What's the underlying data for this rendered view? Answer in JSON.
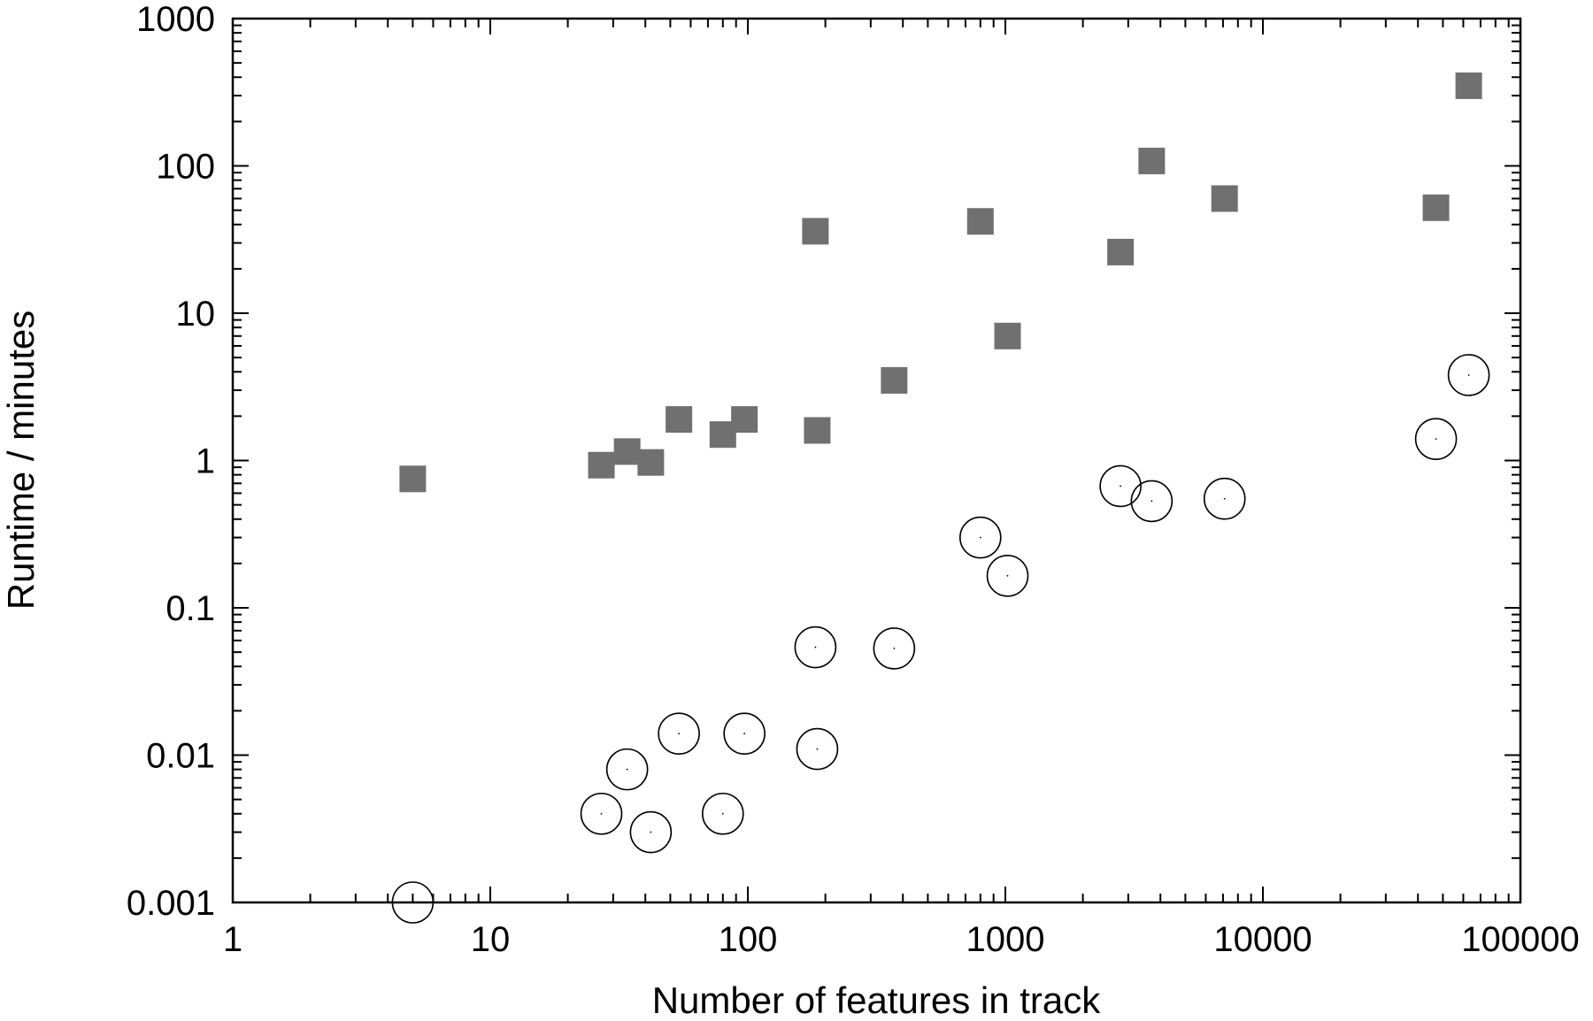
{
  "chart_data": {
    "type": "scatter",
    "title": "",
    "xlabel": "Number of features in track",
    "ylabel": "Runtime / minutes",
    "xscale": "log",
    "yscale": "log",
    "xlim": [
      1,
      100000
    ],
    "ylim": [
      0.001,
      1000
    ],
    "x_ticks": [
      1,
      10,
      100,
      1000,
      10000,
      100000
    ],
    "x_tick_labels": [
      "1",
      "10",
      "100",
      "1000",
      "10000",
      "100000"
    ],
    "y_ticks": [
      0.001,
      0.01,
      0.1,
      1,
      10,
      100,
      1000
    ],
    "y_tick_labels": [
      "0.001",
      "0.01",
      "0.1",
      "1",
      "10",
      "100",
      "1000"
    ],
    "grid": false,
    "legend": "none",
    "series": [
      {
        "marker": "filled-square",
        "color": "#707070",
        "points": [
          {
            "x": 5,
            "y": 0.75
          },
          {
            "x": 27,
            "y": 0.93
          },
          {
            "x": 34,
            "y": 1.15
          },
          {
            "x": 42,
            "y": 0.97
          },
          {
            "x": 54,
            "y": 1.9
          },
          {
            "x": 80,
            "y": 1.5
          },
          {
            "x": 97,
            "y": 1.9
          },
          {
            "x": 186,
            "y": 1.6
          },
          {
            "x": 183,
            "y": 36
          },
          {
            "x": 370,
            "y": 3.5
          },
          {
            "x": 800,
            "y": 42
          },
          {
            "x": 1020,
            "y": 7
          },
          {
            "x": 2800,
            "y": 26
          },
          {
            "x": 3700,
            "y": 108
          },
          {
            "x": 7100,
            "y": 60
          },
          {
            "x": 47000,
            "y": 52
          },
          {
            "x": 63000,
            "y": 350
          }
        ]
      },
      {
        "marker": "open-circle",
        "color": "#000000",
        "points": [
          {
            "x": 5,
            "y": 0.001
          },
          {
            "x": 27,
            "y": 0.004
          },
          {
            "x": 34,
            "y": 0.008
          },
          {
            "x": 42,
            "y": 0.003
          },
          {
            "x": 54,
            "y": 0.014
          },
          {
            "x": 80,
            "y": 0.004
          },
          {
            "x": 97,
            "y": 0.014
          },
          {
            "x": 183,
            "y": 0.054
          },
          {
            "x": 186,
            "y": 0.011
          },
          {
            "x": 370,
            "y": 0.053
          },
          {
            "x": 800,
            "y": 0.3
          },
          {
            "x": 1020,
            "y": 0.165
          },
          {
            "x": 2800,
            "y": 0.67
          },
          {
            "x": 3700,
            "y": 0.53
          },
          {
            "x": 7100,
            "y": 0.55
          },
          {
            "x": 47000,
            "y": 1.4
          },
          {
            "x": 63000,
            "y": 3.8
          }
        ]
      }
    ]
  }
}
